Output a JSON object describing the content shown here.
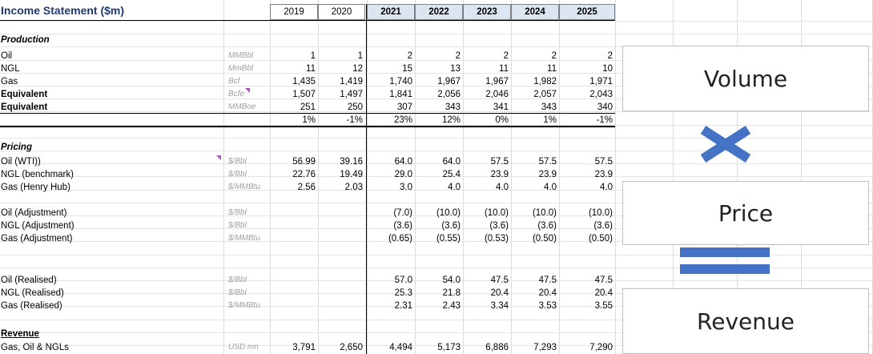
{
  "title": "Income Statement ($m)",
  "years": [
    "2019",
    "2020",
    "2021",
    "2022",
    "2023",
    "2024",
    "2025"
  ],
  "sections": {
    "production": "Production",
    "pricing": "Pricing",
    "revenue": "Revenue"
  },
  "rows": [
    {
      "label": "Oil",
      "unit": "MMBbl",
      "values": [
        "1",
        "1",
        "2",
        "2",
        "2",
        "2",
        "2"
      ]
    },
    {
      "label": "NGL",
      "unit": "MmBbl",
      "values": [
        "11",
        "12",
        "15",
        "13",
        "11",
        "11",
        "10"
      ]
    },
    {
      "label": "Gas",
      "unit": "Bcf",
      "values": [
        "1,435",
        "1,419",
        "1,740",
        "1,967",
        "1,967",
        "1,982",
        "1,971"
      ]
    },
    {
      "label": "Equivalent",
      "unit": "Bcfe",
      "values": [
        "1,507",
        "1,497",
        "1,841",
        "2,056",
        "2,046",
        "2,057",
        "2,043"
      ]
    },
    {
      "label": "Equivalent",
      "unit": "MMBoe",
      "values": [
        "251",
        "250",
        "307",
        "343",
        "341",
        "343",
        "340"
      ]
    },
    {
      "label": "",
      "unit": "",
      "values": [
        "1%",
        "-1%",
        "23%",
        "12%",
        "0%",
        "1%",
        "-1%"
      ]
    },
    {
      "label": "Oil (WTI))",
      "unit": "$/Bbl",
      "values": [
        "56.99",
        "39.16",
        "64.0",
        "64.0",
        "57.5",
        "57.5",
        "57.5"
      ]
    },
    {
      "label": "NGL (benchmark)",
      "unit": "$/Bbl",
      "values": [
        "22.76",
        "19.49",
        "29.0",
        "25.4",
        "23.9",
        "23.9",
        "23.9"
      ]
    },
    {
      "label": "Gas (Henry Hub)",
      "unit": "$/MMBtu",
      "values": [
        "2.56",
        "2.03",
        "3.0",
        "4.0",
        "4.0",
        "4.0",
        "4.0"
      ]
    },
    {
      "label": "Oil (Adjustment)",
      "unit": "$/Bbl",
      "values": [
        "",
        "",
        "(7.0)",
        "(10.0)",
        "(10.0)",
        "(10.0)",
        "(10.0)"
      ]
    },
    {
      "label": "NGL (Adjustment)",
      "unit": "$/Bbl",
      "values": [
        "",
        "",
        "(3.6)",
        "(3.6)",
        "(3.6)",
        "(3.6)",
        "(3.6)"
      ]
    },
    {
      "label": "Gas (Adjustment)",
      "unit": "$/MMBtu",
      "values": [
        "",
        "",
        "(0.65)",
        "(0.55)",
        "(0.53)",
        "(0.50)",
        "(0.50)"
      ]
    },
    {
      "label": "Oil (Realised)",
      "unit": "$/Bbl",
      "values": [
        "",
        "",
        "57.0",
        "54.0",
        "47.5",
        "47.5",
        "47.5"
      ]
    },
    {
      "label": "NGL (Realised)",
      "unit": "$/Bbl",
      "values": [
        "",
        "",
        "25.3",
        "21.8",
        "20.4",
        "20.4",
        "20.4"
      ]
    },
    {
      "label": "Gas (Realised)",
      "unit": "$/MMBtu",
      "values": [
        "",
        "",
        "2.31",
        "2.43",
        "3.34",
        "3.53",
        "3.55"
      ]
    },
    {
      "label": " Gas, Oil & NGLs",
      "unit": "USD mn",
      "values": [
        "3,791",
        "2,650",
        "4,494",
        "5,173",
        "6,886",
        "7,293",
        "7,290"
      ]
    }
  ],
  "boxes": {
    "volume": "Volume",
    "price": "Price",
    "revenue": "Revenue"
  },
  "colors": {
    "title": "#1f3a73",
    "forecast_header": "#dce6f1",
    "symbol": "#4472c4"
  }
}
